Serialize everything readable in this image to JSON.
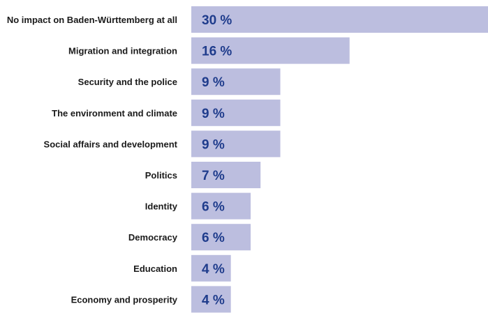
{
  "chart_data": {
    "type": "bar",
    "orientation": "horizontal",
    "categories": [
      "No impact on Baden-Württemberg at all",
      "Migration and integration",
      "Security and the police",
      "The environment and climate",
      "Social affairs and development",
      "Politics",
      "Identity",
      "Democracy",
      "Education",
      "Economy and prosperity"
    ],
    "values": [
      30,
      16,
      9,
      9,
      9,
      7,
      6,
      6,
      4,
      4
    ],
    "value_labels": [
      "30 %",
      "16 %",
      "9 %",
      "9 %",
      "9 %",
      "7 %",
      "6 %",
      "6 %",
      "4 %",
      "4 %"
    ],
    "unit": "%",
    "title": "",
    "xlabel": "",
    "ylabel": "",
    "grid": false,
    "bar_color": "#bcbedf",
    "label_color": "#1f3c8c"
  }
}
